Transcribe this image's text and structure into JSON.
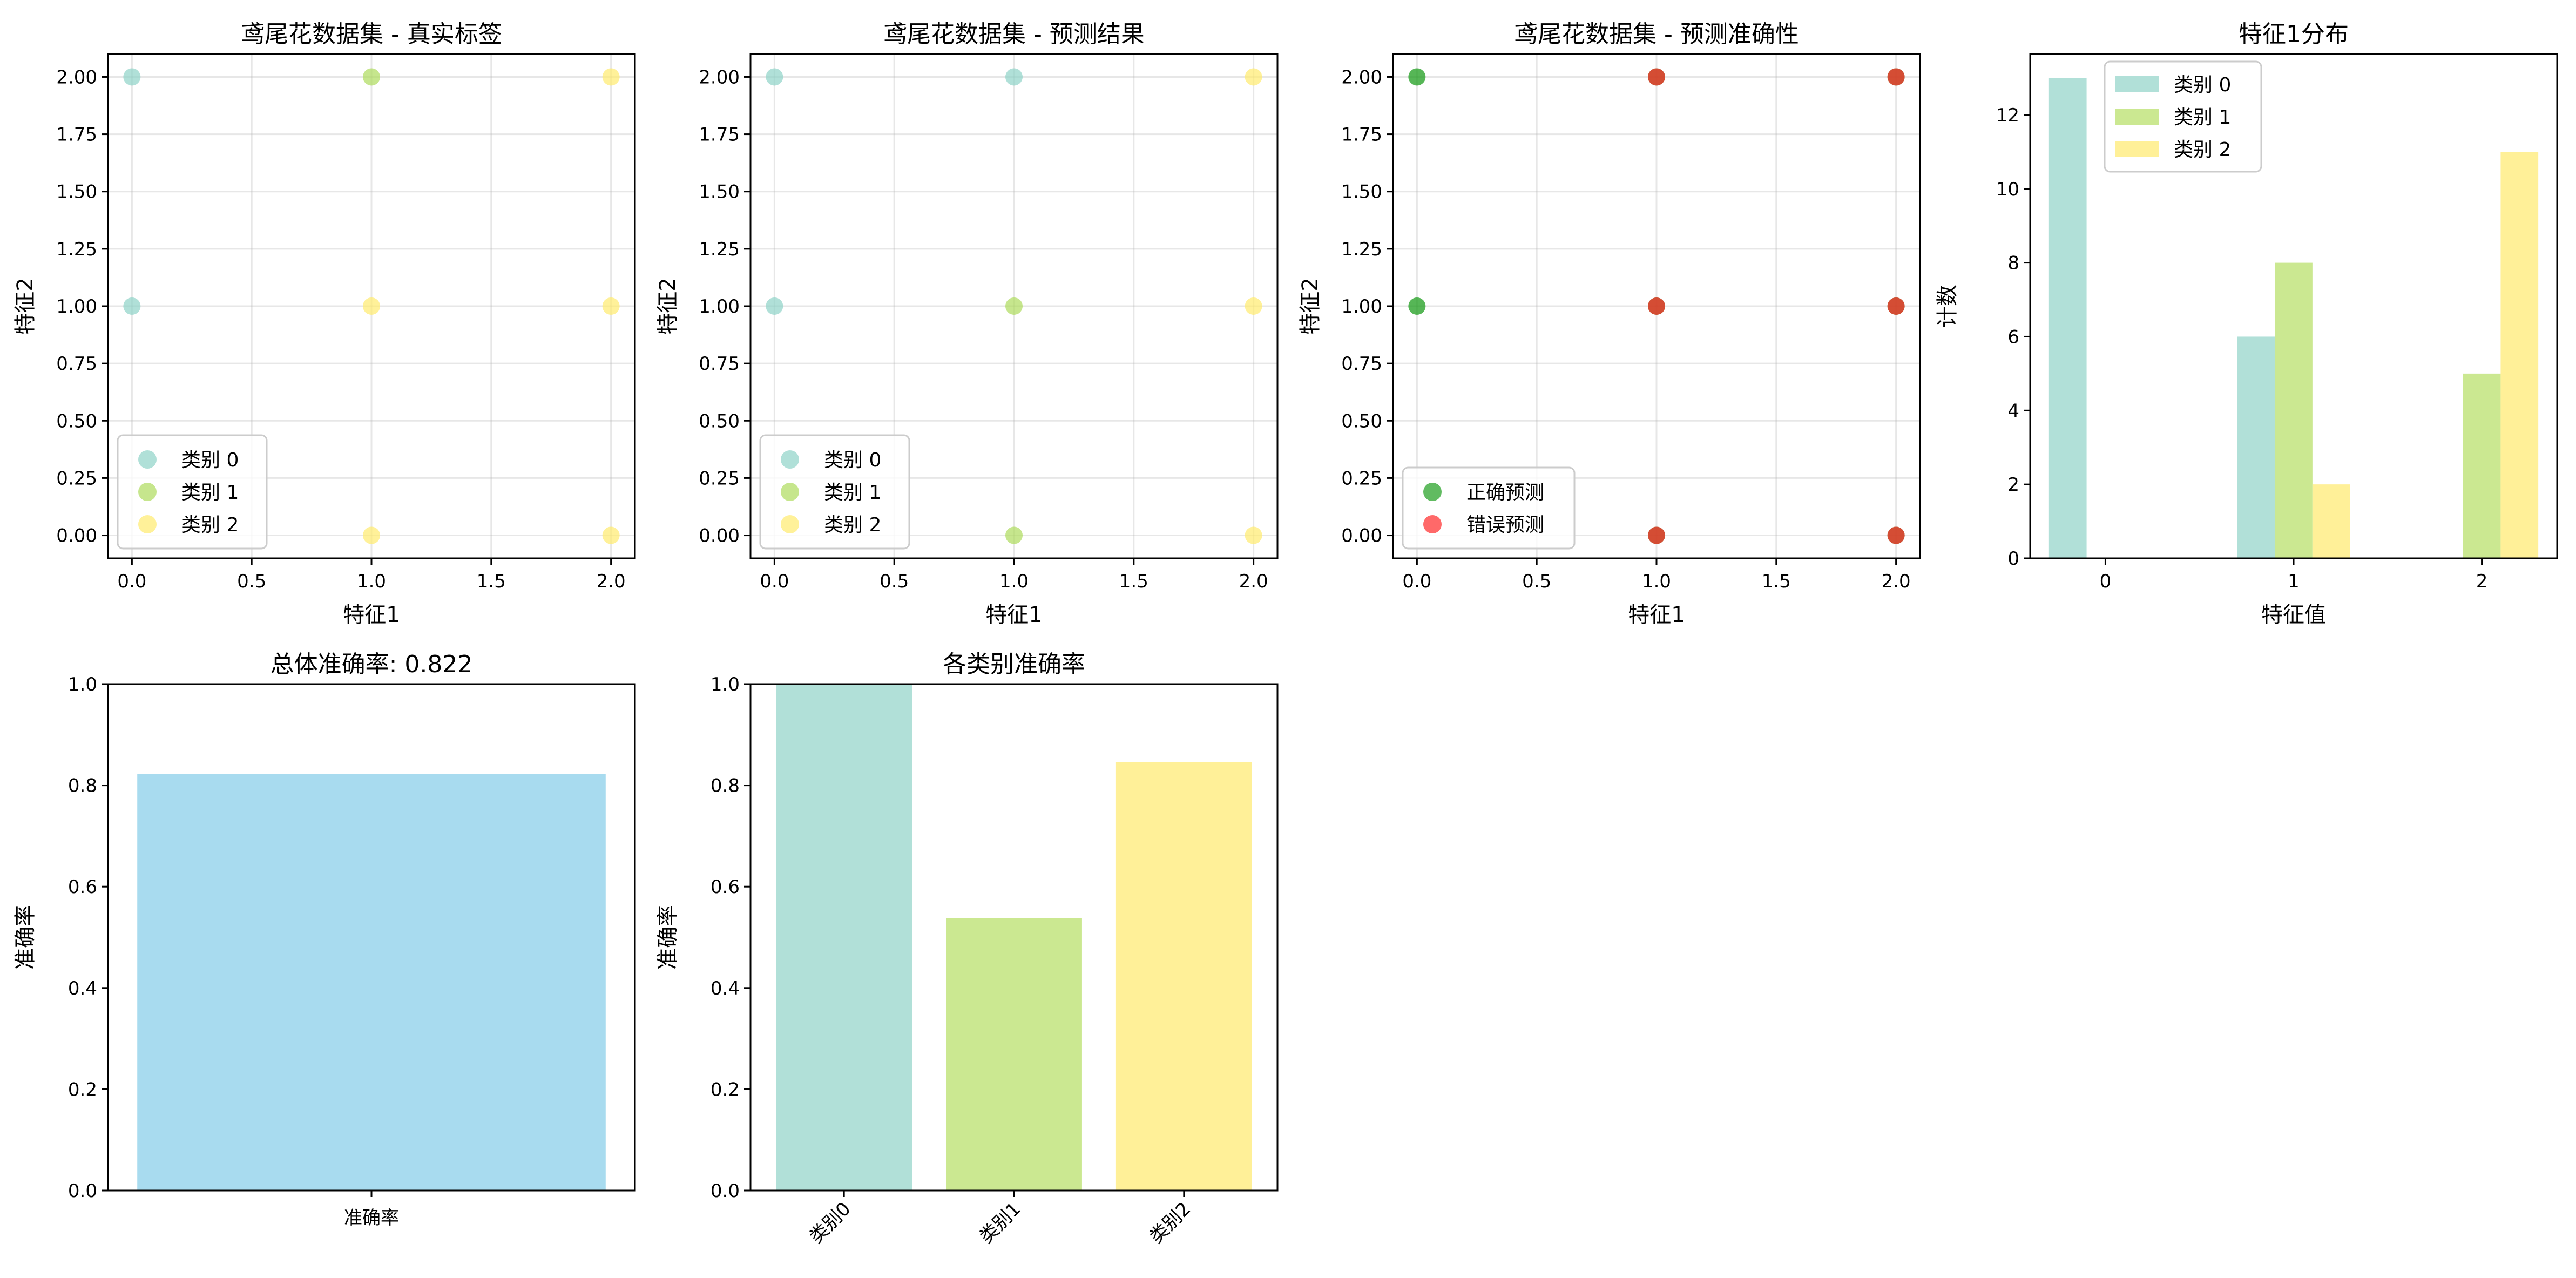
{
  "colors": {
    "class0": "#8fd3c7",
    "class1": "#aedc5c",
    "class2": "#ffeb6e",
    "hist0": "#b1e0d8",
    "hist1": "#cbe891",
    "hist2": "#fff098",
    "correct": "#1e9e1e",
    "wrong": "#ff2a2a",
    "overall_bar": "#a8dbef"
  },
  "chart_data": [
    {
      "id": "true-labels",
      "type": "scatter",
      "title": "鸢尾花数据集 - 真实标签",
      "xlabel": "特征1",
      "ylabel": "特征2",
      "xlim": [
        -0.1,
        2.1
      ],
      "ylim": [
        -0.1,
        2.1
      ],
      "xticks": [
        "0.0",
        "0.5",
        "1.0",
        "1.5",
        "2.0"
      ],
      "yticks": [
        "0.00",
        "0.25",
        "0.50",
        "0.75",
        "1.00",
        "1.25",
        "1.50",
        "1.75",
        "2.00"
      ],
      "grid": true,
      "legend": "lower-left",
      "series": [
        {
          "name": "类别 0",
          "color_key": "class0",
          "points": [
            [
              0,
              2
            ],
            [
              0,
              1
            ]
          ]
        },
        {
          "name": "类别 1",
          "color_key": "class1",
          "points": [
            [
              1,
              2
            ]
          ]
        },
        {
          "name": "类别 2",
          "color_key": "class2",
          "points": [
            [
              2,
              2
            ],
            [
              1,
              1
            ],
            [
              2,
              1
            ],
            [
              1,
              0
            ],
            [
              2,
              0
            ]
          ]
        }
      ]
    },
    {
      "id": "predictions",
      "type": "scatter",
      "title": "鸢尾花数据集 - 预测结果",
      "xlabel": "特征1",
      "ylabel": "特征2",
      "xlim": [
        -0.1,
        2.1
      ],
      "ylim": [
        -0.1,
        2.1
      ],
      "xticks": [
        "0.0",
        "0.5",
        "1.0",
        "1.5",
        "2.0"
      ],
      "yticks": [
        "0.00",
        "0.25",
        "0.50",
        "0.75",
        "1.00",
        "1.25",
        "1.50",
        "1.75",
        "2.00"
      ],
      "grid": true,
      "legend": "lower-left",
      "series": [
        {
          "name": "类别 0",
          "color_key": "class0",
          "points": [
            [
              0,
              2
            ],
            [
              1,
              2
            ],
            [
              0,
              1
            ]
          ]
        },
        {
          "name": "类别 1",
          "color_key": "class1",
          "points": [
            [
              1,
              1
            ],
            [
              1,
              0
            ]
          ]
        },
        {
          "name": "类别 2",
          "color_key": "class2",
          "points": [
            [
              2,
              2
            ],
            [
              2,
              1
            ],
            [
              2,
              0
            ]
          ]
        }
      ]
    },
    {
      "id": "accuracy-map",
      "type": "scatter",
      "title": "鸢尾花数据集 - 预测准确性",
      "xlabel": "特征1",
      "ylabel": "特征2",
      "xlim": [
        -0.1,
        2.1
      ],
      "ylim": [
        -0.1,
        2.1
      ],
      "xticks": [
        "0.0",
        "0.5",
        "1.0",
        "1.5",
        "2.0"
      ],
      "yticks": [
        "0.00",
        "0.25",
        "0.50",
        "0.75",
        "1.00",
        "1.25",
        "1.50",
        "1.75",
        "2.00"
      ],
      "grid": true,
      "legend": "lower-left",
      "series": [
        {
          "name": "正确预测",
          "color_key": "correct",
          "points": [
            [
              0,
              2
            ],
            [
              0,
              1
            ],
            [
              1,
              2
            ],
            [
              1,
              1
            ],
            [
              1,
              0
            ],
            [
              2,
              2
            ],
            [
              2,
              1
            ],
            [
              2,
              0
            ]
          ]
        },
        {
          "name": "错误预测",
          "color_key": "wrong",
          "points": [
            [
              1,
              2
            ],
            [
              1,
              1
            ],
            [
              1,
              0
            ],
            [
              2,
              2
            ],
            [
              2,
              1
            ],
            [
              2,
              0
            ]
          ]
        }
      ]
    },
    {
      "id": "feature1-dist",
      "type": "bar",
      "title": "特征1分布",
      "xlabel": "特征值",
      "ylabel": "计数",
      "categories": [
        "0",
        "1",
        "2"
      ],
      "ylim": [
        0,
        13.65
      ],
      "yticks": [
        "0",
        "2",
        "4",
        "6",
        "8",
        "10",
        "12"
      ],
      "grid": false,
      "legend": "top-center",
      "series": [
        {
          "name": "类别 0",
          "color_key": "hist0",
          "values": [
            13,
            6,
            0
          ]
        },
        {
          "name": "类别 1",
          "color_key": "hist1",
          "values": [
            0,
            8,
            5
          ]
        },
        {
          "name": "类别 2",
          "color_key": "hist2",
          "values": [
            0,
            2,
            11
          ]
        }
      ]
    },
    {
      "id": "overall-accuracy",
      "type": "bar",
      "title": "总体准确率: 0.822",
      "xlabel": "",
      "ylabel": "准确率",
      "categories": [
        "准确率"
      ],
      "values": [
        0.822
      ],
      "ylim": [
        0,
        1.0
      ],
      "yticks": [
        "0.0",
        "0.2",
        "0.4",
        "0.6",
        "0.8",
        "1.0"
      ],
      "grid": false,
      "color_key": "overall_bar"
    },
    {
      "id": "per-class-accuracy",
      "type": "bar",
      "title": "各类别准确率",
      "xlabel": "",
      "ylabel": "准确率",
      "categories": [
        "类别0",
        "类别1",
        "类别2"
      ],
      "values": [
        1.0,
        0.538,
        0.846
      ],
      "ylim": [
        0,
        1.0
      ],
      "yticks": [
        "0.0",
        "0.2",
        "0.4",
        "0.6",
        "0.8",
        "1.0"
      ],
      "grid": false,
      "color_keys": [
        "hist0",
        "hist1",
        "hist2"
      ]
    }
  ]
}
